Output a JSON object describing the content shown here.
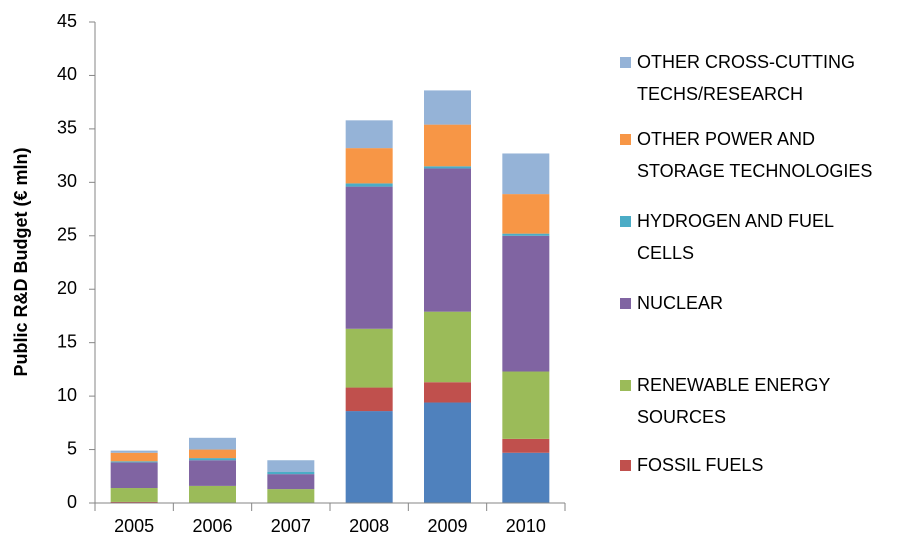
{
  "chart_data": {
    "type": "stacked_bar",
    "y_label": "Public R&D Budget (€ mln)",
    "categories": [
      "2005",
      "2006",
      "2007",
      "2008",
      "2009",
      "2010"
    ],
    "series": [
      {
        "color": "#4f81bd",
        "values": [
          0,
          0,
          0,
          8.6,
          9.4,
          4.7
        ]
      },
      {
        "name": "FOSSIL FUELS",
        "color": "#c0504d",
        "values": [
          0.1,
          0,
          0,
          2.2,
          1.9,
          1.3
        ]
      },
      {
        "name": "RENEWABLE ENERGY\nSOURCES",
        "color": "#9bbb59",
        "values": [
          1.3,
          1.6,
          1.3,
          5.5,
          6.6,
          6.3
        ]
      },
      {
        "name": "NUCLEAR",
        "color": "#8064a2",
        "values": [
          2.4,
          2.4,
          1.4,
          13.3,
          13.4,
          12.7
        ]
      },
      {
        "name": "HYDROGEN AND FUEL\nCELLS",
        "color": "#4bacc6",
        "values": [
          0.1,
          0.2,
          0.2,
          0.3,
          0.2,
          0.2
        ]
      },
      {
        "name": "OTHER POWER AND\nSTORAGE TECHNOLOGIES",
        "color": "#f79646",
        "values": [
          0.8,
          0.8,
          0,
          3.3,
          3.9,
          3.7
        ]
      },
      {
        "name": "OTHER CROSS-CUTTING\nTECHS/RESEARCH",
        "color": "#95b3d7",
        "values": [
          0.2,
          1.1,
          1.1,
          2.6,
          3.2,
          3.8
        ]
      }
    ],
    "ylim": [
      0,
      45
    ],
    "yticks": [
      0,
      5,
      10,
      15,
      20,
      25,
      30,
      35,
      40,
      45
    ],
    "legend": "right"
  }
}
